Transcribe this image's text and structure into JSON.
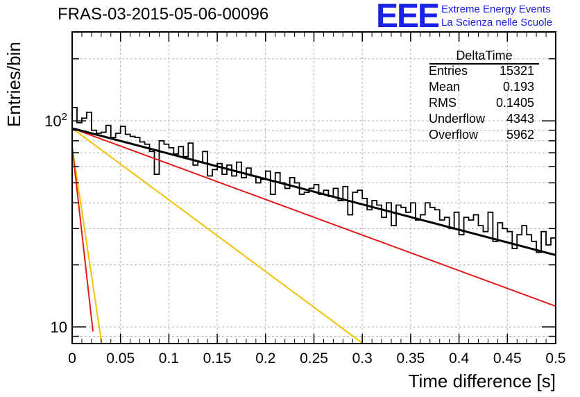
{
  "title": "FRAS-03-2015-05-06-00096",
  "logo": {
    "mark": "EEE",
    "line1": "Extreme Energy Events",
    "line2": "La Scienza nelle Scuole"
  },
  "stats": {
    "title": "DeltaTime",
    "rows": [
      {
        "label": "Entries",
        "value": "15321"
      },
      {
        "label": "Mean",
        "value": "0.193"
      },
      {
        "label": "RMS",
        "value": "0.1405"
      },
      {
        "label": "Underflow",
        "value": "4343"
      },
      {
        "label": "Overflow",
        "value": "5962"
      }
    ]
  },
  "colors": {
    "histogram": "#000000",
    "fit_total": "#000000",
    "fit_red": "#e31a1c",
    "fit_yellow": "#f2c100",
    "grid": "#b0b0b0"
  },
  "chart_data": {
    "type": "line",
    "xlabel": "Time difference [s]",
    "ylabel": "Entries/bin",
    "xlim": [
      0,
      0.5
    ],
    "ylim": [
      8.3,
      270
    ],
    "yscale": "log",
    "grid": true,
    "xticks": [
      "0",
      "0.05",
      "0.1",
      "0.15",
      "0.2",
      "0.25",
      "0.3",
      "0.35",
      "0.4",
      "0.45",
      "0.5"
    ],
    "yticks": [
      {
        "value": 10,
        "label": "10"
      },
      {
        "value": 100,
        "label": "10^2"
      }
    ],
    "histogram": {
      "bin_width": 0.005,
      "values": [
        116,
        98,
        103,
        110,
        90,
        87,
        88,
        95,
        83,
        87,
        94,
        86,
        84,
        83,
        79,
        77,
        71,
        55,
        80,
        77,
        74,
        69,
        75,
        67,
        78,
        61,
        63,
        71,
        54,
        58,
        62,
        55,
        61,
        54,
        63,
        53,
        59,
        54,
        50,
        52,
        57,
        44,
        56,
        50,
        47,
        53,
        50,
        44,
        45,
        47,
        49,
        44,
        46,
        43,
        47,
        41,
        48,
        35,
        45,
        46,
        42,
        37,
        41,
        39,
        34,
        40,
        31,
        39,
        38,
        36,
        40,
        33,
        35,
        40,
        38,
        37,
        33,
        34,
        30,
        36,
        28,
        34,
        33,
        35,
        31,
        29,
        36,
        26,
        32,
        30,
        29,
        24,
        28,
        31,
        28,
        26,
        23,
        29,
        25,
        27
      ]
    },
    "series": [
      {
        "color": "black",
        "x": [
          0,
          0.5
        ],
        "y": [
          92,
          22.3
        ]
      },
      {
        "color": "red",
        "x": [
          0,
          0.5
        ],
        "y": [
          92,
          12.6
        ]
      },
      {
        "color": "red",
        "x": [
          0,
          0.0215
        ],
        "y": [
          75,
          9.5
        ]
      },
      {
        "color": "yellow",
        "x": [
          0,
          0.3
        ],
        "y": [
          92,
          8.35
        ]
      },
      {
        "color": "yellow",
        "x": [
          0,
          0.0305
        ],
        "y": [
          75,
          8.35
        ]
      }
    ]
  }
}
